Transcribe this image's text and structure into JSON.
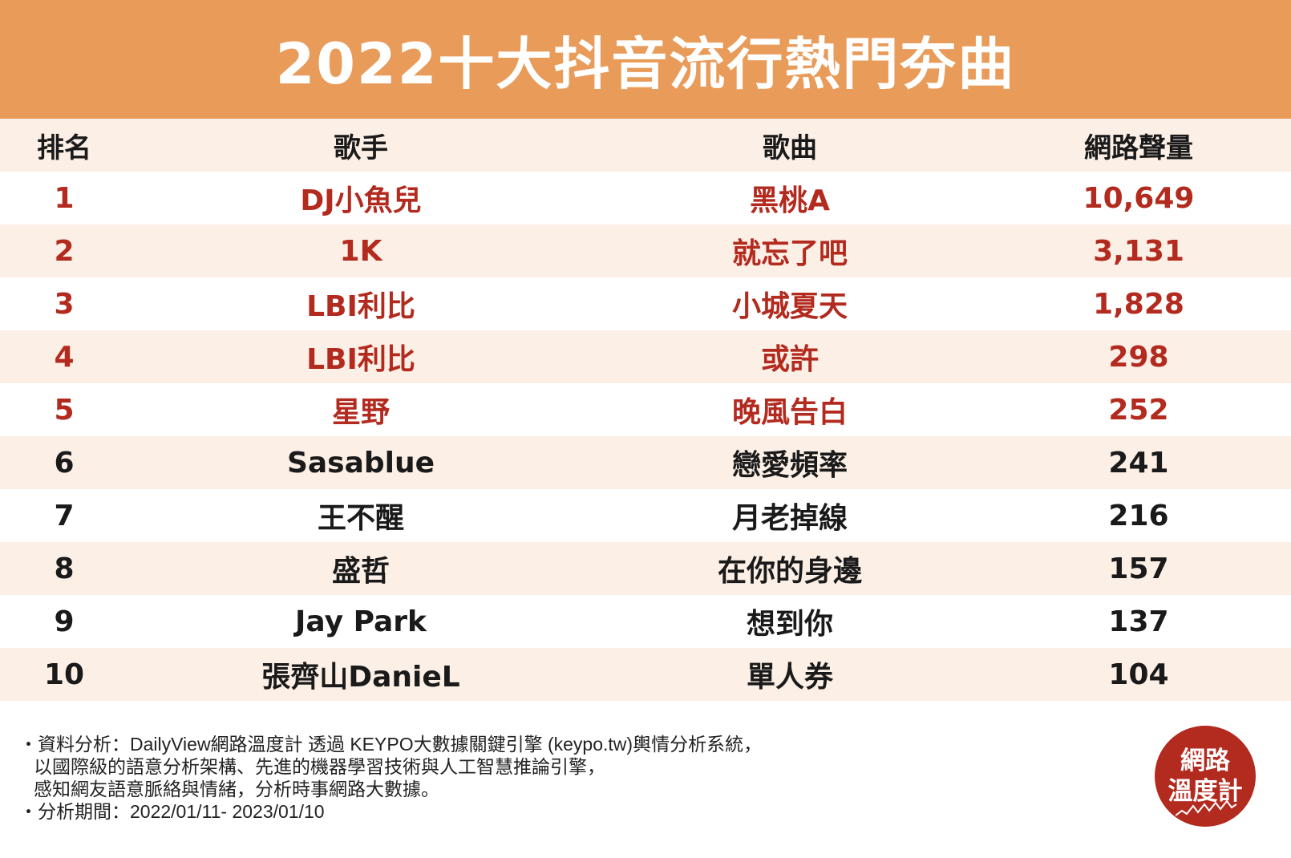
{
  "title": "2022十大抖音流行熱門夯曲",
  "columns": [
    "排名",
    "歌手",
    "歌曲",
    "網路聲量"
  ],
  "rows": [
    {
      "rank": "1",
      "artist": "DJ小魚兒",
      "song": "黑桃A",
      "volume": "10,649"
    },
    {
      "rank": "2",
      "artist": "1K",
      "song": "就忘了吧",
      "volume": "3,131"
    },
    {
      "rank": "3",
      "artist": "LBI利比",
      "song": "小城夏天",
      "volume": "1,828"
    },
    {
      "rank": "4",
      "artist": "LBI利比",
      "song": "或許",
      "volume": "298"
    },
    {
      "rank": "5",
      "artist": "星野",
      "song": "晚風告白",
      "volume": "252"
    },
    {
      "rank": "6",
      "artist": "Sasablue",
      "song": "戀愛頻率",
      "volume": "241"
    },
    {
      "rank": "7",
      "artist": "王不醒",
      "song": "月老掉線",
      "volume": "216"
    },
    {
      "rank": "8",
      "artist": "盛哲",
      "song": "在你的身邊",
      "volume": "157"
    },
    {
      "rank": "9",
      "artist": "Jay Park",
      "song": "想到你",
      "volume": "137"
    },
    {
      "rank": "10",
      "artist": "張齊山DanieL",
      "song": "單人券",
      "volume": "104"
    }
  ],
  "footer": {
    "line1": "・資料分析：DailyView網路溫度計 透過 KEYPO大數據關鍵引擎 (keypo.tw)輿情分析系統，",
    "line2": "以國際級的語意分析架構、先進的機器學習技術與人工智慧推論引擎，",
    "line3": "感知網友語意脈絡與情緒，分析時事網路大數據。",
    "line4": "・分析期間：2022/01/11- 2023/01/10"
  },
  "logo": {
    "line1": "網路",
    "line2": "溫度計"
  },
  "colors": {
    "header": "#e99b59",
    "accent_red": "#b32a1f",
    "stripe": "#fcefe6"
  }
}
